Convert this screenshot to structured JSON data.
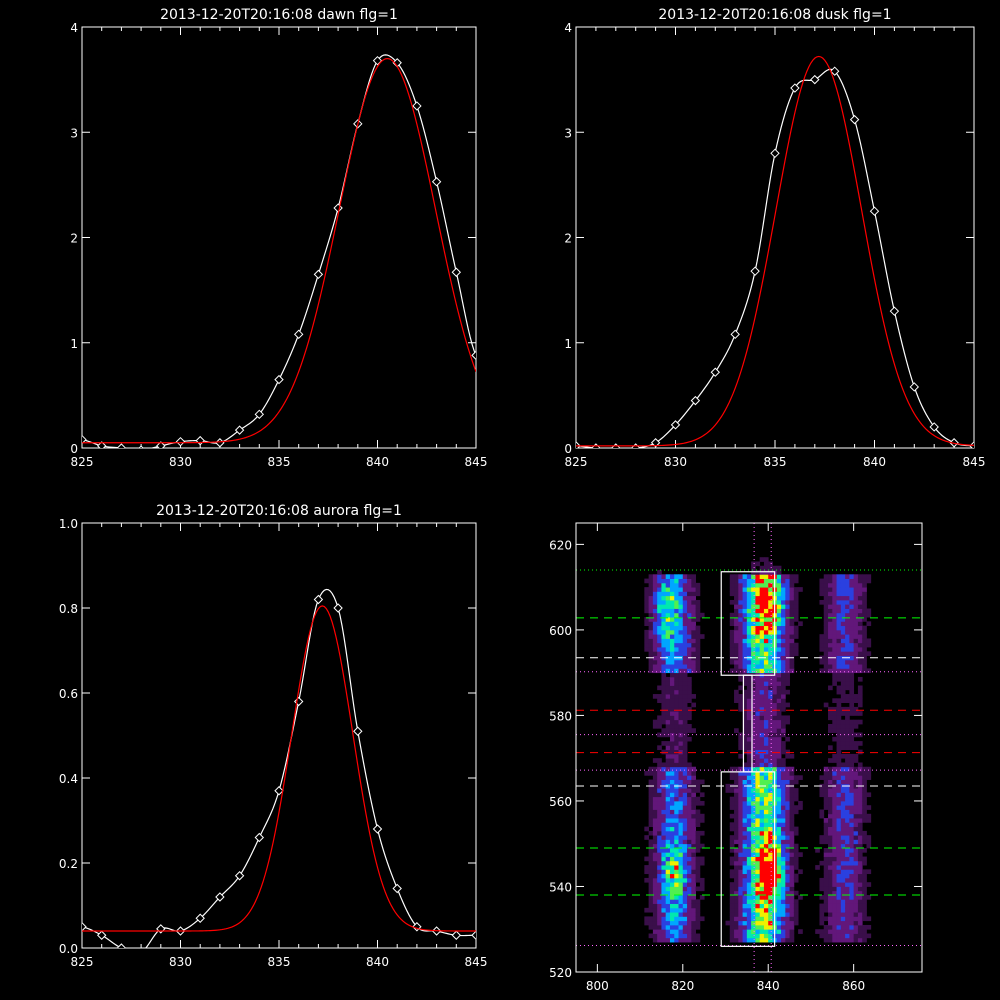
{
  "chart_data": [
    {
      "type": "line",
      "title": "2013-12-20T20:16:08 dawn flg=1",
      "xlabel": "",
      "ylabel": "",
      "xlim": [
        825,
        845
      ],
      "ylim": [
        0,
        4
      ],
      "xticks": [
        "825",
        "830",
        "835",
        "840",
        "845"
      ],
      "yticks": [
        "0",
        "1",
        "2",
        "3",
        "4"
      ],
      "grid": false,
      "series": [
        {
          "color": "#ffffff",
          "marker": "diamond",
          "x": [
            825,
            826,
            827,
            828,
            829,
            830,
            831,
            832,
            833,
            834,
            835,
            836,
            837,
            838,
            839,
            840,
            841,
            842,
            843,
            844,
            845
          ],
          "y": [
            0.08,
            0.02,
            0.0,
            -0.02,
            0.02,
            0.06,
            0.07,
            0.05,
            0.17,
            0.32,
            0.65,
            1.08,
            1.65,
            2.28,
            3.08,
            3.68,
            3.66,
            3.25,
            2.53,
            1.67,
            0.88
          ]
        },
        {
          "color": "#ff0000",
          "marker": "none",
          "fit": {
            "kind": "gaussian",
            "amp": 3.65,
            "center": 840.5,
            "sigma": 2.45,
            "base": 0.05
          }
        }
      ]
    },
    {
      "type": "line",
      "title": "2013-12-20T20:16:08 dusk flg=1",
      "xlabel": "",
      "ylabel": "",
      "xlim": [
        825,
        845
      ],
      "ylim": [
        0,
        4
      ],
      "xticks": [
        "825",
        "830",
        "835",
        "840",
        "845"
      ],
      "yticks": [
        "0",
        "1",
        "2",
        "3",
        "4"
      ],
      "grid": false,
      "series": [
        {
          "color": "#ffffff",
          "marker": "diamond",
          "x": [
            825,
            826,
            827,
            828,
            829,
            830,
            831,
            832,
            833,
            834,
            835,
            836,
            837,
            838,
            839,
            840,
            841,
            842,
            843,
            844,
            845
          ],
          "y": [
            0.02,
            0.0,
            0.0,
            0.0,
            0.05,
            0.22,
            0.45,
            0.72,
            1.08,
            1.68,
            2.8,
            3.42,
            3.5,
            3.58,
            3.12,
            2.25,
            1.3,
            0.58,
            0.2,
            0.05,
            0.02
          ]
        },
        {
          "color": "#ff0000",
          "marker": "none",
          "fit": {
            "kind": "gaussian",
            "amp": 3.7,
            "center": 837.2,
            "sigma": 2.15,
            "base": 0.02
          }
        }
      ]
    },
    {
      "type": "line",
      "title": "2013-12-20T20:16:08 aurora flg=1",
      "xlabel": "",
      "ylabel": "",
      "xlim": [
        825,
        845
      ],
      "ylim": [
        0,
        1
      ],
      "xticks": [
        "825",
        "830",
        "835",
        "840",
        "845"
      ],
      "yticks": [
        "0.0",
        "0.2",
        "0.4",
        "0.6",
        "0.8",
        "1.0"
      ],
      "grid": false,
      "series": [
        {
          "color": "#ffffff",
          "marker": "diamond",
          "x": [
            825,
            826,
            827,
            828,
            829,
            830,
            831,
            832,
            833,
            834,
            835,
            836,
            837,
            838,
            839,
            840,
            841,
            842,
            843,
            844,
            845
          ],
          "y": [
            0.05,
            0.03,
            0.0,
            -0.01,
            0.045,
            0.04,
            0.07,
            0.12,
            0.17,
            0.26,
            0.37,
            0.58,
            0.82,
            0.8,
            0.51,
            0.28,
            0.14,
            0.05,
            0.04,
            0.03,
            0.03
          ]
        },
        {
          "color": "#ff0000",
          "marker": "none",
          "fit": {
            "kind": "gaussian",
            "amp": 0.765,
            "center": 837.2,
            "sigma": 1.55,
            "base": 0.04
          }
        }
      ]
    },
    {
      "type": "heatmap",
      "title": "",
      "xlabel": "",
      "ylabel": "",
      "xlim": [
        795,
        876
      ],
      "ylim": [
        520,
        625
      ],
      "xticks": [
        "800",
        "820",
        "840",
        "860"
      ],
      "yticks": [
        "520",
        "540",
        "560",
        "580",
        "600",
        "620"
      ],
      "colormap": [
        "#000000",
        "#3a0f4a",
        "#62177a",
        "#2a40e0",
        "#00a6ff",
        "#00e8b0",
        "#50f050",
        "#f0f000",
        "#ff0000"
      ],
      "columns": [
        {
          "center": 818,
          "width": 3.2,
          "strength": 0.55
        },
        {
          "center": 839,
          "width": 3.6,
          "strength": 1.0
        },
        {
          "center": 858,
          "width": 3.2,
          "strength": 0.4
        }
      ],
      "hotspots": [
        {
          "x": 839.5,
          "y": 607,
          "value": 1.0
        },
        {
          "x": 840.5,
          "y": 543,
          "value": 1.0
        },
        {
          "x": 818,
          "y": 543,
          "value": 0.7
        },
        {
          "x": 816,
          "y": 604,
          "value": 0.6
        }
      ],
      "annotations": {
        "boxes": [
          {
            "x0": 829,
            "x1": 841.5,
            "y0": 526,
            "y1": 566.8
          },
          {
            "x0": 829,
            "x1": 841.5,
            "y0": 589.4,
            "y1": 613.6
          }
        ],
        "connector": {
          "x0": 834.2,
          "x1": 836.2,
          "y0": 566.8,
          "y1": 589.4
        },
        "vlines": [
          {
            "x": 836.7,
            "color": "#ff66ff",
            "style": "dotted"
          },
          {
            "x": 840.7,
            "color": "#ff66ff",
            "style": "dotted"
          }
        ],
        "hlines": [
          {
            "y": 614,
            "color": "#00ff00",
            "style": "dotted"
          },
          {
            "y": 602.8,
            "color": "#00ff00",
            "style": "dashed"
          },
          {
            "y": 593.5,
            "color": "#ffffff",
            "style": "dashed"
          },
          {
            "y": 590.2,
            "color": "#ff66ff",
            "style": "dotted"
          },
          {
            "y": 581.2,
            "color": "#ff0000",
            "style": "dashed"
          },
          {
            "y": 575.5,
            "color": "#ff66ff",
            "style": "dotted"
          },
          {
            "y": 571.3,
            "color": "#ff0000",
            "style": "dashed"
          },
          {
            "y": 567.2,
            "color": "#ff66ff",
            "style": "dotted"
          },
          {
            "y": 563.5,
            "color": "#ffffff",
            "style": "dashed"
          },
          {
            "y": 549,
            "color": "#00ff00",
            "style": "dashed"
          },
          {
            "y": 538,
            "color": "#00ff00",
            "style": "dashed"
          },
          {
            "y": 526.2,
            "color": "#ff66ff",
            "style": "dotted"
          }
        ]
      }
    }
  ]
}
